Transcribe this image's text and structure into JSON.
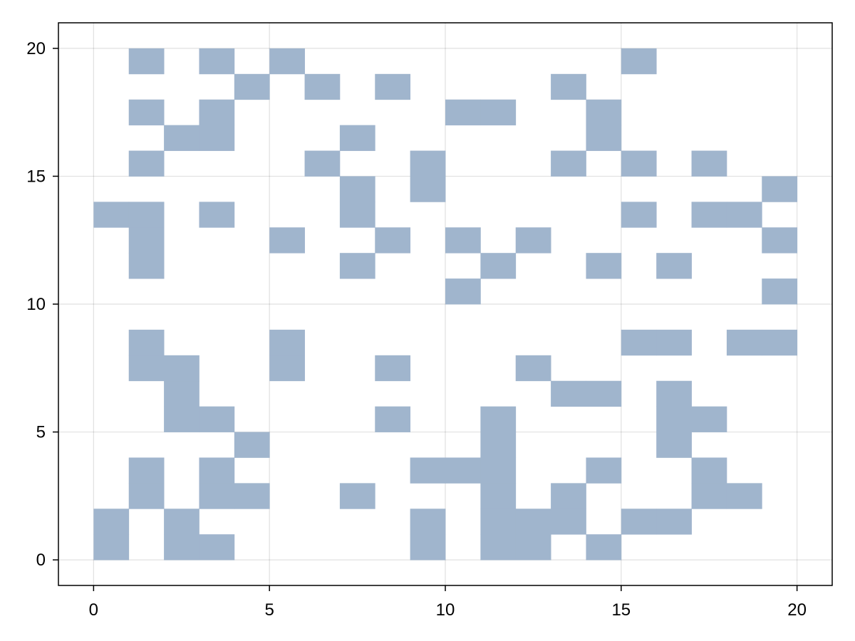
{
  "chart_data": {
    "type": "heatmap",
    "title": "",
    "xlabel": "",
    "ylabel": "",
    "xlim": [
      -1,
      21
    ],
    "ylim": [
      -1,
      21
    ],
    "xticks": [
      0,
      5,
      10,
      15,
      20
    ],
    "yticks": [
      0,
      5,
      10,
      15,
      20
    ],
    "grid": true,
    "cell_size": 1,
    "fill_color": "#a0b5cd",
    "filled_cells": [
      [
        0,
        0
      ],
      [
        2,
        0
      ],
      [
        3,
        0
      ],
      [
        9,
        0
      ],
      [
        11,
        0
      ],
      [
        12,
        0
      ],
      [
        14,
        0
      ],
      [
        0,
        1
      ],
      [
        2,
        1
      ],
      [
        9,
        1
      ],
      [
        11,
        1
      ],
      [
        12,
        1
      ],
      [
        13,
        1
      ],
      [
        15,
        1
      ],
      [
        16,
        1
      ],
      [
        1,
        2
      ],
      [
        3,
        2
      ],
      [
        4,
        2
      ],
      [
        7,
        2
      ],
      [
        11,
        2
      ],
      [
        13,
        2
      ],
      [
        17,
        2
      ],
      [
        18,
        2
      ],
      [
        1,
        3
      ],
      [
        3,
        3
      ],
      [
        9,
        3
      ],
      [
        10,
        3
      ],
      [
        11,
        3
      ],
      [
        14,
        3
      ],
      [
        17,
        3
      ],
      [
        4,
        4
      ],
      [
        11,
        4
      ],
      [
        16,
        4
      ],
      [
        2,
        5
      ],
      [
        3,
        5
      ],
      [
        8,
        5
      ],
      [
        11,
        5
      ],
      [
        16,
        5
      ],
      [
        17,
        5
      ],
      [
        2,
        6
      ],
      [
        13,
        6
      ],
      [
        14,
        6
      ],
      [
        16,
        6
      ],
      [
        1,
        7
      ],
      [
        2,
        7
      ],
      [
        5,
        7
      ],
      [
        8,
        7
      ],
      [
        12,
        7
      ],
      [
        1,
        8
      ],
      [
        5,
        8
      ],
      [
        15,
        8
      ],
      [
        16,
        8
      ],
      [
        18,
        8
      ],
      [
        19,
        8
      ],
      [
        10,
        10
      ],
      [
        19,
        10
      ],
      [
        1,
        11
      ],
      [
        7,
        11
      ],
      [
        11,
        11
      ],
      [
        14,
        11
      ],
      [
        16,
        11
      ],
      [
        1,
        12
      ],
      [
        5,
        12
      ],
      [
        8,
        12
      ],
      [
        10,
        12
      ],
      [
        12,
        12
      ],
      [
        19,
        12
      ],
      [
        0,
        13
      ],
      [
        1,
        13
      ],
      [
        3,
        13
      ],
      [
        7,
        13
      ],
      [
        15,
        13
      ],
      [
        17,
        13
      ],
      [
        18,
        13
      ],
      [
        7,
        14
      ],
      [
        9,
        14
      ],
      [
        19,
        14
      ],
      [
        1,
        15
      ],
      [
        6,
        15
      ],
      [
        9,
        15
      ],
      [
        13,
        15
      ],
      [
        15,
        15
      ],
      [
        17,
        15
      ],
      [
        2,
        16
      ],
      [
        3,
        16
      ],
      [
        7,
        16
      ],
      [
        14,
        16
      ],
      [
        1,
        17
      ],
      [
        3,
        17
      ],
      [
        10,
        17
      ],
      [
        11,
        17
      ],
      [
        14,
        17
      ],
      [
        4,
        18
      ],
      [
        6,
        18
      ],
      [
        8,
        18
      ],
      [
        13,
        18
      ],
      [
        1,
        19
      ],
      [
        3,
        19
      ],
      [
        5,
        19
      ],
      [
        15,
        19
      ]
    ]
  }
}
